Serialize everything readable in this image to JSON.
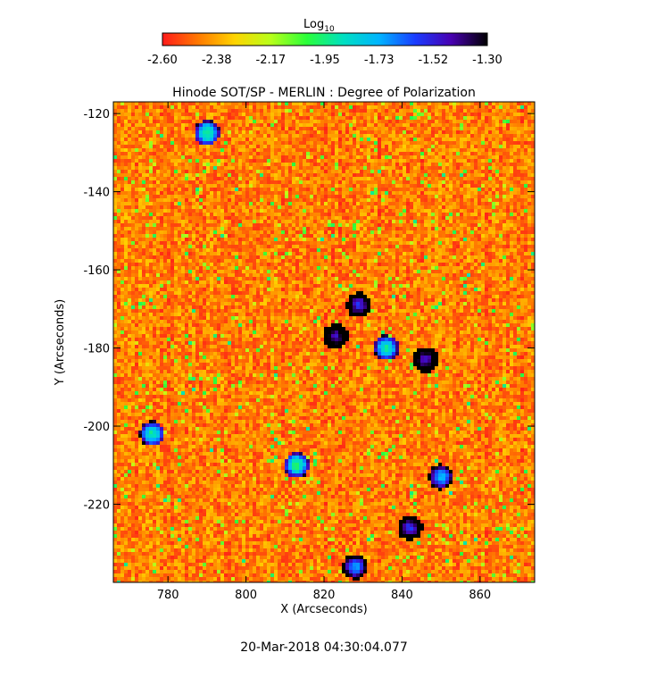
{
  "colorbar": {
    "label_main": "Log",
    "label_sub": "10",
    "ticks": [
      "-2.60",
      "-2.38",
      "-2.17",
      "-1.95",
      "-1.73",
      "-1.52",
      "-1.30"
    ],
    "range": [
      -2.6,
      -1.3
    ],
    "colormap": [
      "#ff1a1a",
      "#ff7a00",
      "#ffd400",
      "#b8ff1a",
      "#2aff3a",
      "#00e0c0",
      "#00b4ff",
      "#1a3cff",
      "#4800b0",
      "#000000"
    ]
  },
  "chart_data": {
    "type": "heatmap",
    "title": "Hinode SOT/SP - MERLIN : Degree of Polarization",
    "xlabel": "X (Arcseconds)",
    "ylabel": "Y (Arcseconds)",
    "xlim": [
      766,
      874
    ],
    "ylim": [
      -240,
      -117
    ],
    "xticks": [
      780,
      800,
      820,
      840,
      860
    ],
    "yticks": [
      -120,
      -140,
      -160,
      -180,
      -200,
      -220
    ],
    "xtick_labels": [
      "780",
      "800",
      "820",
      "840",
      "860"
    ],
    "ytick_labels": [
      "-120",
      "-140",
      "-160",
      "-180",
      "-200",
      "-220"
    ],
    "value_scale": "log10",
    "background_log_value": -2.45,
    "features": [
      {
        "x": 823,
        "y": -177,
        "value": -1.45
      },
      {
        "x": 829,
        "y": -169,
        "value": -1.55
      },
      {
        "x": 846,
        "y": -183,
        "value": -1.5
      },
      {
        "x": 842,
        "y": -226,
        "value": -1.55
      },
      {
        "x": 776,
        "y": -202,
        "value": -1.9
      },
      {
        "x": 813,
        "y": -210,
        "value": -1.95
      },
      {
        "x": 790,
        "y": -125,
        "value": -1.95
      },
      {
        "x": 850,
        "y": -213,
        "value": -1.75
      },
      {
        "x": 828,
        "y": -236,
        "value": -1.7
      },
      {
        "x": 836,
        "y": -180,
        "value": -1.9
      }
    ]
  },
  "footer": {
    "timestamp": "20-Mar-2018 04:30:04.077"
  }
}
